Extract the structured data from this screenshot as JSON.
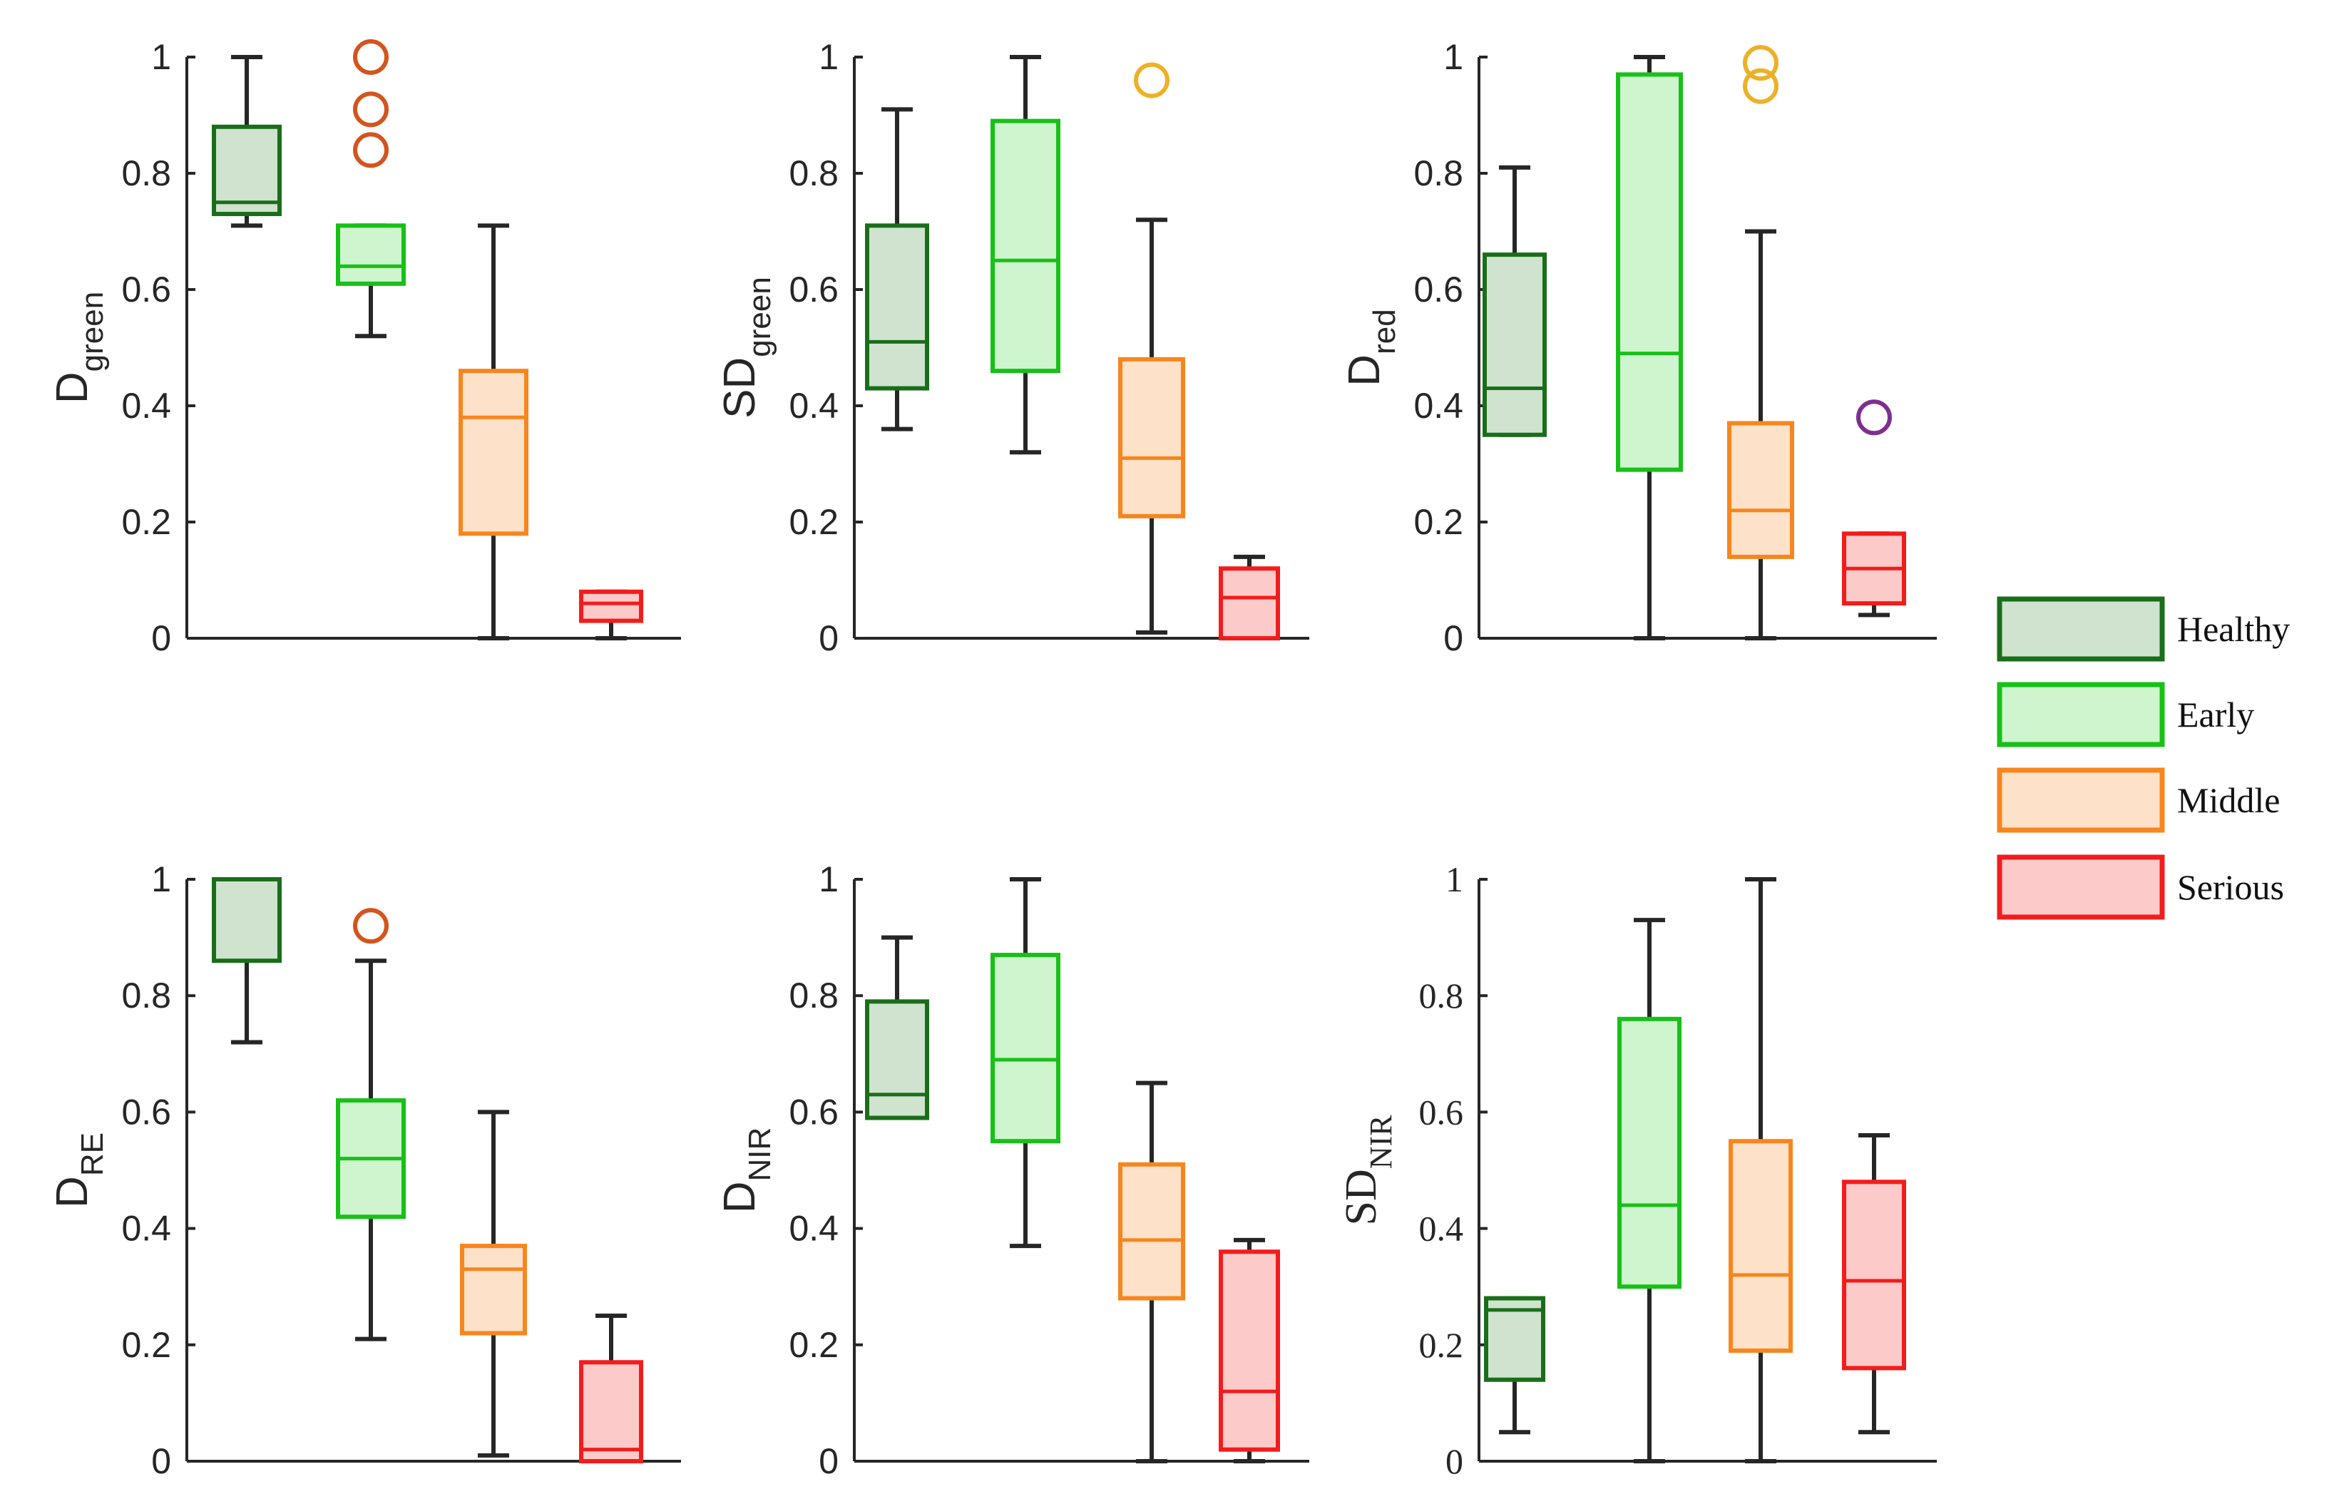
{
  "chart_data": [
    {
      "type": "box",
      "panel": "D_green",
      "ylabel": {
        "main": "D",
        "sub": "green"
      },
      "ylim": [
        0,
        1
      ],
      "yticks": [
        "0",
        "0.2",
        "0.4",
        "0.6",
        "0.8",
        "1"
      ],
      "categories": [
        "Healthy",
        "Early",
        "Middle",
        "Serious"
      ],
      "boxes": [
        {
          "group": "Healthy",
          "whisker_low": 0.71,
          "q1": 0.73,
          "median": 0.75,
          "q3": 0.88,
          "whisker_high": 1.0,
          "outliers": []
        },
        {
          "group": "Early",
          "whisker_low": 0.52,
          "q1": 0.61,
          "median": 0.64,
          "q3": 0.71,
          "whisker_high": 0.71,
          "outliers": [
            1.0,
            0.91,
            0.84
          ]
        },
        {
          "group": "Middle",
          "whisker_low": 0.0,
          "q1": 0.18,
          "median": 0.38,
          "q3": 0.46,
          "whisker_high": 0.71,
          "outliers": []
        },
        {
          "group": "Serious",
          "whisker_low": 0.0,
          "q1": 0.03,
          "median": 0.06,
          "q3": 0.08,
          "whisker_high": 0.08,
          "outliers": []
        }
      ]
    },
    {
      "type": "box",
      "panel": "SD_green",
      "ylabel": {
        "main": "SD",
        "sub": "green"
      },
      "ylim": [
        0,
        1
      ],
      "yticks": [
        "0",
        "0.2",
        "0.4",
        "0.6",
        "0.8",
        "1"
      ],
      "categories": [
        "Healthy",
        "Early",
        "Middle",
        "Serious"
      ],
      "boxes": [
        {
          "group": "Healthy",
          "whisker_low": 0.36,
          "q1": 0.43,
          "median": 0.51,
          "q3": 0.71,
          "whisker_high": 0.91,
          "outliers": []
        },
        {
          "group": "Early",
          "whisker_low": 0.32,
          "q1": 0.46,
          "median": 0.65,
          "q3": 0.89,
          "whisker_high": 1.0,
          "outliers": []
        },
        {
          "group": "Middle",
          "whisker_low": 0.01,
          "q1": 0.21,
          "median": 0.31,
          "q3": 0.48,
          "whisker_high": 0.72,
          "outliers": [
            0.96
          ]
        },
        {
          "group": "Serious",
          "whisker_low": 0.0,
          "q1": 0.0,
          "median": 0.07,
          "q3": 0.12,
          "whisker_high": 0.14,
          "outliers": []
        }
      ]
    },
    {
      "type": "box",
      "panel": "D_red",
      "ylabel": {
        "main": "D",
        "sub": "red"
      },
      "ylim": [
        0,
        1
      ],
      "yticks": [
        "0",
        "0.2",
        "0.4",
        "0.6",
        "0.8",
        "1"
      ],
      "categories": [
        "Healthy",
        "Early",
        "Middle",
        "Serious"
      ],
      "boxes": [
        {
          "group": "Healthy",
          "whisker_low": 0.35,
          "q1": 0.35,
          "median": 0.43,
          "q3": 0.66,
          "whisker_high": 0.81,
          "outliers": []
        },
        {
          "group": "Early",
          "whisker_low": 0.0,
          "q1": 0.29,
          "median": 0.49,
          "q3": 0.97,
          "whisker_high": 1.0,
          "outliers": []
        },
        {
          "group": "Middle",
          "whisker_low": 0.0,
          "q1": 0.14,
          "median": 0.22,
          "q3": 0.37,
          "whisker_high": 0.7,
          "outliers": [
            0.99,
            0.95
          ]
        },
        {
          "group": "Serious",
          "whisker_low": 0.04,
          "q1": 0.06,
          "median": 0.12,
          "q3": 0.18,
          "whisker_high": 0.18,
          "outliers": [
            0.38
          ]
        }
      ]
    },
    {
      "type": "box",
      "panel": "D_RE",
      "ylabel": {
        "main": "D",
        "sub": "RE"
      },
      "ylim": [
        0,
        1
      ],
      "yticks": [
        "0",
        "0.2",
        "0.4",
        "0.6",
        "0.8",
        "1"
      ],
      "categories": [
        "Healthy",
        "Early",
        "Middle",
        "Serious"
      ],
      "boxes": [
        {
          "group": "Healthy",
          "whisker_low": 0.72,
          "q1": 0.86,
          "median": 1.0,
          "q3": 1.0,
          "whisker_high": 1.0,
          "outliers": []
        },
        {
          "group": "Early",
          "whisker_low": 0.21,
          "q1": 0.42,
          "median": 0.52,
          "q3": 0.62,
          "whisker_high": 0.86,
          "outliers": [
            0.92
          ]
        },
        {
          "group": "Middle",
          "whisker_low": 0.01,
          "q1": 0.22,
          "median": 0.33,
          "q3": 0.37,
          "whisker_high": 0.6,
          "outliers": []
        },
        {
          "group": "Serious",
          "whisker_low": 0.0,
          "q1": 0.0,
          "median": 0.02,
          "q3": 0.17,
          "whisker_high": 0.25,
          "outliers": []
        }
      ]
    },
    {
      "type": "box",
      "panel": "D_NIR",
      "ylabel": {
        "main": "D",
        "sub": "NIR"
      },
      "ylim": [
        0,
        1
      ],
      "yticks": [
        "0",
        "0.2",
        "0.4",
        "0.6",
        "0.8",
        "1"
      ],
      "categories": [
        "Healthy",
        "Early",
        "Middle",
        "Serious"
      ],
      "boxes": [
        {
          "group": "Healthy",
          "whisker_low": 0.59,
          "q1": 0.59,
          "median": 0.63,
          "q3": 0.79,
          "whisker_high": 0.9,
          "outliers": []
        },
        {
          "group": "Early",
          "whisker_low": 0.37,
          "q1": 0.55,
          "median": 0.69,
          "q3": 0.87,
          "whisker_high": 1.0,
          "outliers": []
        },
        {
          "group": "Middle",
          "whisker_low": 0.0,
          "q1": 0.28,
          "median": 0.38,
          "q3": 0.51,
          "whisker_high": 0.65,
          "outliers": []
        },
        {
          "group": "Serious",
          "whisker_low": 0.0,
          "q1": 0.02,
          "median": 0.12,
          "q3": 0.36,
          "whisker_high": 0.38,
          "outliers": []
        }
      ]
    },
    {
      "type": "box",
      "panel": "SD_NIR",
      "ylabel": {
        "main": "SD",
        "sub": "NIR"
      },
      "ylim": [
        0,
        1
      ],
      "yticks": [
        "0",
        "0.2",
        "0.4",
        "0.6",
        "0.8",
        "1"
      ],
      "categories": [
        "Healthy",
        "Early",
        "Middle",
        "Serious"
      ],
      "boxes": [
        {
          "group": "Healthy",
          "whisker_low": 0.05,
          "q1": 0.14,
          "median": 0.26,
          "q3": 0.28,
          "whisker_high": 0.28,
          "outliers": []
        },
        {
          "group": "Early",
          "whisker_low": 0.0,
          "q1": 0.3,
          "median": 0.44,
          "q3": 0.76,
          "whisker_high": 0.93,
          "outliers": []
        },
        {
          "group": "Middle",
          "whisker_low": 0.0,
          "q1": 0.19,
          "median": 0.32,
          "q3": 0.55,
          "whisker_high": 1.0,
          "outliers": []
        },
        {
          "group": "Serious",
          "whisker_low": 0.05,
          "q1": 0.16,
          "median": 0.31,
          "q3": 0.48,
          "whisker_high": 0.56,
          "outliers": []
        }
      ]
    }
  ],
  "legend": {
    "placement": "right",
    "entries": [
      {
        "label": "Healthy",
        "stroke": "#1a6e1a",
        "fill": "#cfe3cf"
      },
      {
        "label": "Early",
        "stroke": "#18c018",
        "fill": "#cef5ce"
      },
      {
        "label": "Middle",
        "stroke": "#f7861e",
        "fill": "#fde1c8"
      },
      {
        "label": "Serious",
        "stroke": "#f31c1c",
        "fill": "#fdcaca"
      }
    ]
  },
  "colors": {
    "whisker": "#262626",
    "axis": "#262626",
    "outlier_healthy": "#1a6e1a",
    "outlier_early": "#d4541e",
    "outlier_middle": "#edb127",
    "outlier_serious": "#7e2f8e"
  }
}
